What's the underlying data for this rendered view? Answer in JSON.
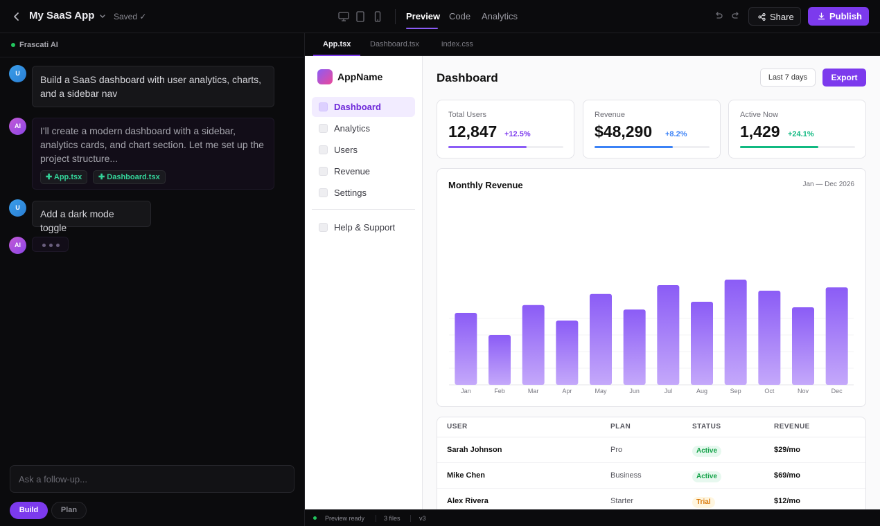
{
  "topbar": {
    "project_title": "My SaaS App",
    "saved_status": "Saved ✓",
    "tabs": [
      "Preview",
      "Code",
      "Analytics"
    ],
    "active_tab": "Preview",
    "share_label": "Share",
    "publish_label": "Publish"
  },
  "chat": {
    "assistant_name": "Frascati AI",
    "messages": [
      {
        "role": "user",
        "avatar": "U",
        "text": "Build a SaaS dashboard with user analytics, charts, and a sidebar nav"
      },
      {
        "role": "ai",
        "avatar": "AI",
        "text": "I'll create a modern dashboard with a sidebar, analytics cards, and chart section. Let me set up the project structure...",
        "files": [
          "App.tsx",
          "Dashboard.tsx"
        ]
      },
      {
        "role": "user",
        "avatar": "U",
        "text": "Add a dark mode toggle"
      },
      {
        "role": "ai",
        "avatar": "AI",
        "typing": true
      }
    ],
    "input_placeholder": "Ask a follow-up...",
    "modes": [
      "Build",
      "Plan"
    ],
    "active_mode": "Build"
  },
  "file_tabs": [
    "App.tsx",
    "Dashboard.tsx",
    "index.css"
  ],
  "active_file": "App.tsx",
  "preview": {
    "app_name": "AppName",
    "nav": [
      "Dashboard",
      "Analytics",
      "Users",
      "Revenue",
      "Settings"
    ],
    "nav_secondary": [
      "Help & Support"
    ],
    "active_nav": "Dashboard",
    "page_title": "Dashboard",
    "range_label": "Last 7 days",
    "export_label": "Export",
    "stats": [
      {
        "label": "Total Users",
        "value": "12,847",
        "change": "+12.5%",
        "color": "#8b5cf6",
        "progress": 0.68
      },
      {
        "label": "Revenue",
        "value": "$48,290",
        "change": "+8.2%",
        "color": "#3b82f6",
        "progress": 0.68
      },
      {
        "label": "Active Now",
        "value": "1,429",
        "change": "+24.1%",
        "color": "#10b981",
        "progress": 0.68
      }
    ],
    "chart_title": "Monthly Revenue",
    "chart_range": "Jan — Dec 2026",
    "table": {
      "headers": [
        "USER",
        "PLAN",
        "STATUS",
        "REVENUE"
      ],
      "rows": [
        {
          "user": "Sarah Johnson",
          "plan": "Pro",
          "status": "Active",
          "revenue": "$29/mo"
        },
        {
          "user": "Mike Chen",
          "plan": "Business",
          "status": "Active",
          "revenue": "$69/mo"
        },
        {
          "user": "Alex Rivera",
          "plan": "Starter",
          "status": "Trial",
          "revenue": "$12/mo"
        }
      ]
    }
  },
  "status_bar": {
    "preview_status": "Preview ready",
    "files_count": "3 files",
    "version": "v3"
  },
  "colors": {
    "accent": "#7c3aed",
    "success": "#16a34a",
    "warning": "#d97706"
  },
  "chart_data": {
    "type": "bar",
    "title": "Monthly Revenue",
    "categories": [
      "Jan",
      "Feb",
      "Mar",
      "Apr",
      "May",
      "Jun",
      "Jul",
      "Aug",
      "Sep",
      "Oct",
      "Nov",
      "Dec"
    ],
    "values": [
      65,
      45,
      72,
      58,
      82,
      68,
      90,
      75,
      95,
      85,
      70,
      88
    ],
    "ylim": [
      0,
      100
    ],
    "xlabel": "",
    "ylabel": "",
    "grid": true,
    "legend": "none"
  }
}
